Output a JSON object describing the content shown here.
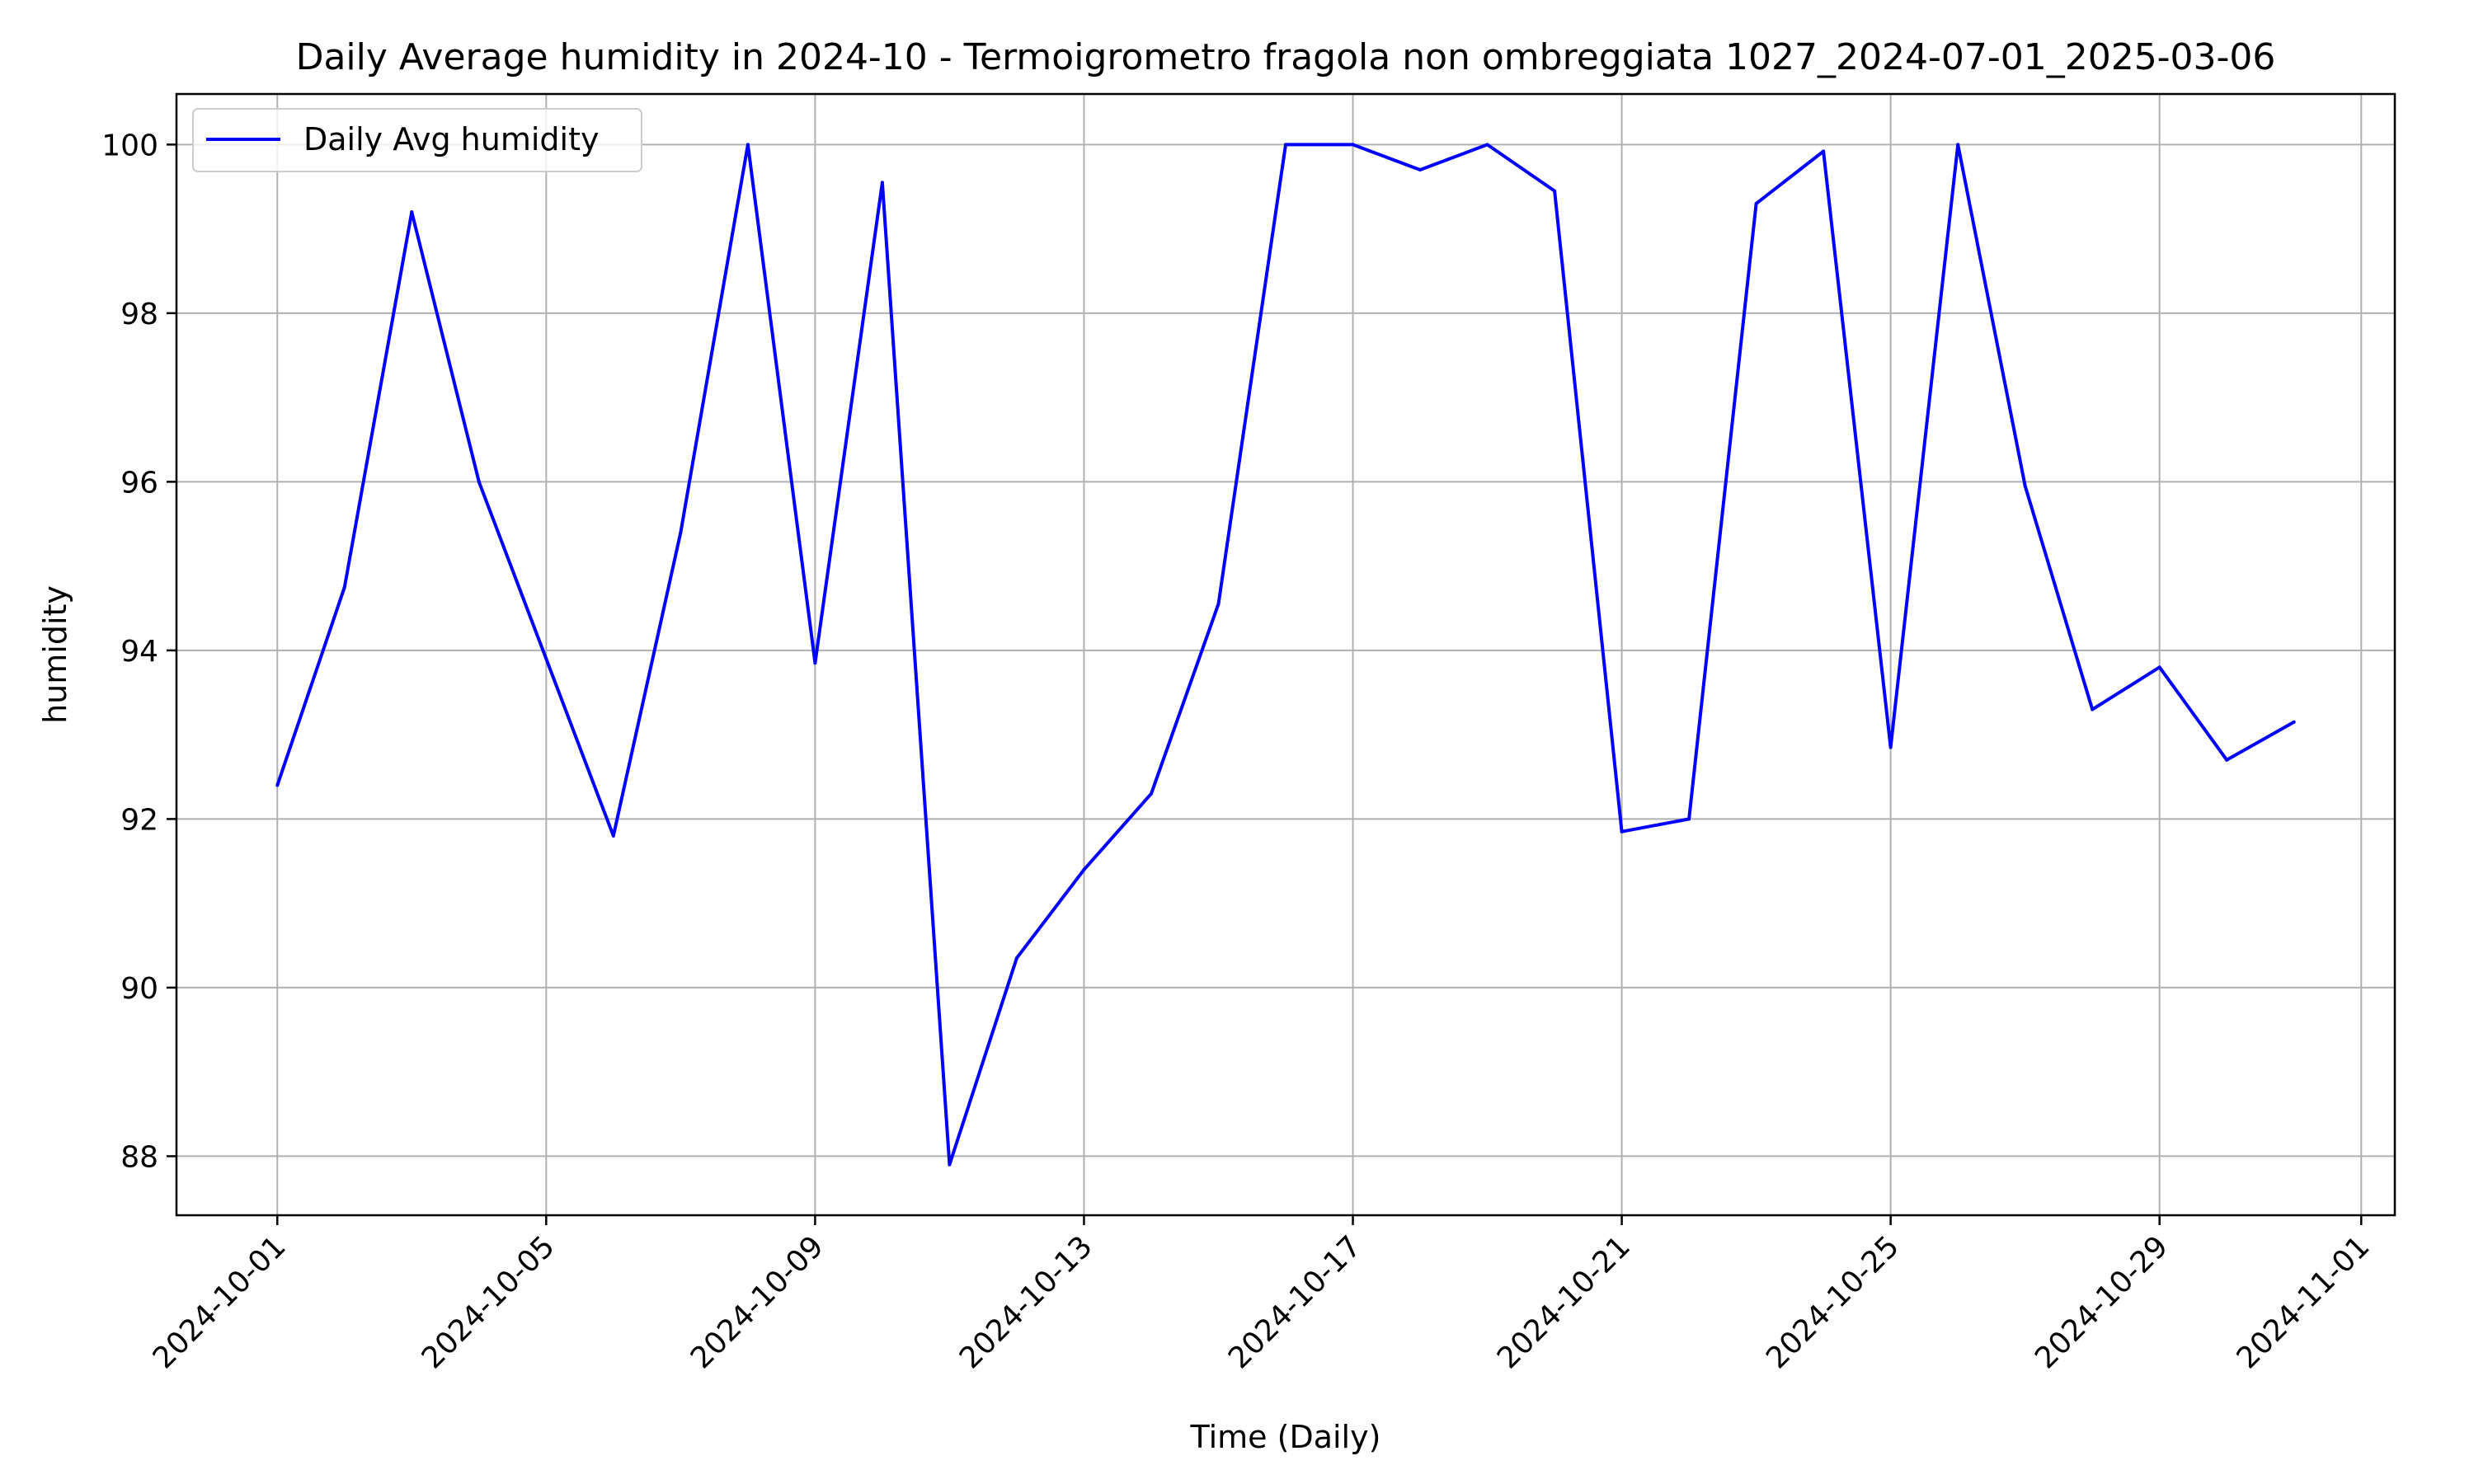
{
  "chart_data": {
    "type": "line",
    "title": "Daily Average humidity in 2024-10 - Termoigrometro fragola non ombreggiata 1027_2024-07-01_2025-03-06",
    "xlabel": "Time (Daily)",
    "ylabel": "humidity",
    "grid": true,
    "legend_position": "top-left",
    "xlim": [
      "2024-09-29.5",
      "2024-11-01.5"
    ],
    "ylim": [
      87.3,
      100.6
    ],
    "x_ticks": [
      "2024-10-01",
      "2024-10-05",
      "2024-10-09",
      "2024-10-13",
      "2024-10-17",
      "2024-10-21",
      "2024-10-25",
      "2024-10-29",
      "2024-11-01"
    ],
    "y_ticks": [
      88,
      90,
      92,
      94,
      96,
      98,
      100
    ],
    "x": [
      "2024-10-01",
      "2024-10-02",
      "2024-10-03",
      "2024-10-04",
      "2024-10-05",
      "2024-10-06",
      "2024-10-07",
      "2024-10-08",
      "2024-10-09",
      "2024-10-10",
      "2024-10-11",
      "2024-10-12",
      "2024-10-13",
      "2024-10-14",
      "2024-10-15",
      "2024-10-16",
      "2024-10-17",
      "2024-10-18",
      "2024-10-19",
      "2024-10-20",
      "2024-10-21",
      "2024-10-22",
      "2024-10-23",
      "2024-10-24",
      "2024-10-25",
      "2024-10-26",
      "2024-10-27",
      "2024-10-28",
      "2024-10-29",
      "2024-10-30",
      "2024-10-31"
    ],
    "series": [
      {
        "name": "Daily Avg humidity",
        "color": "#0000ff",
        "values": [
          92.4,
          94.75,
          99.2,
          96.0,
          93.9,
          91.8,
          95.4,
          100.0,
          93.85,
          99.55,
          87.9,
          90.35,
          91.4,
          92.3,
          94.55,
          100.0,
          100.0,
          99.7,
          100.0,
          99.45,
          91.85,
          92.0,
          99.3,
          99.92,
          92.85,
          100.0,
          95.95,
          93.3,
          93.8,
          92.7,
          93.15
        ]
      }
    ]
  }
}
